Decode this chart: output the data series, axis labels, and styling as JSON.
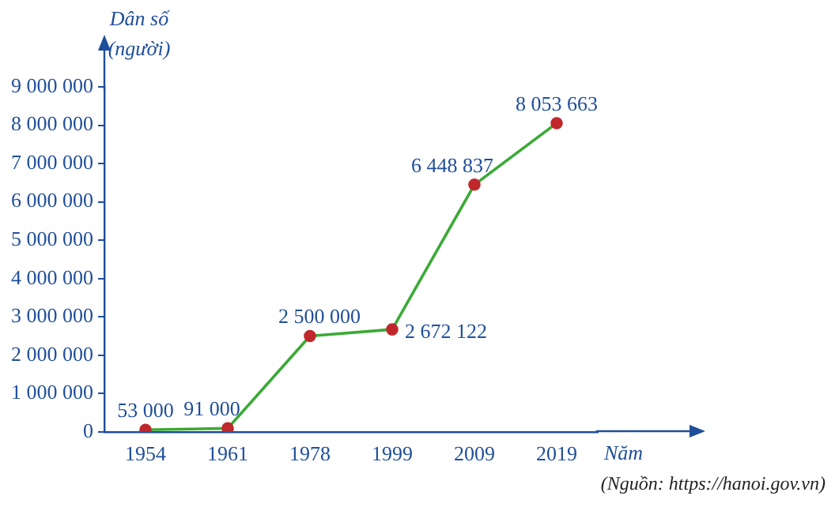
{
  "chart_data": {
    "type": "line",
    "xlabel": "Năm",
    "ylabel": "Dân số (người)",
    "categories": [
      "1954",
      "1961",
      "1978",
      "1999",
      "2009",
      "2019"
    ],
    "series": [
      {
        "color": "#3aaa35",
        "values": [
          53000,
          91000,
          2500000,
          2672122,
          6448837,
          8053663
        ],
        "value_labels": [
          "53 000",
          "91 000",
          "2 500 000",
          "2 672 122",
          "6 448 837",
          "8 053 663"
        ]
      }
    ],
    "ylim": [
      0,
      9000000
    ],
    "yticks": [
      0,
      {
        "value": 1000000,
        "label": "1 000 000"
      },
      {
        "value": 2000000,
        "label": "2 000 000"
      },
      {
        "value": 3000000,
        "label": "3 000 000"
      },
      {
        "value": 4000000,
        "label": "4 000 000"
      },
      {
        "value": 5000000,
        "label": "5 000 000"
      },
      {
        "value": 6000000,
        "label": "6 000 000"
      },
      {
        "value": 7000000,
        "label": "7 000 000"
      },
      {
        "value": 8000000,
        "label": "8 000 000"
      },
      {
        "value": 9000000,
        "label": "9 000 000"
      }
    ],
    "annotations": [
      "(Nguồn: https://hanoi.gov.vn)"
    ],
    "grid": false,
    "legend": false,
    "marker": "circle",
    "line_style": "solid"
  }
}
